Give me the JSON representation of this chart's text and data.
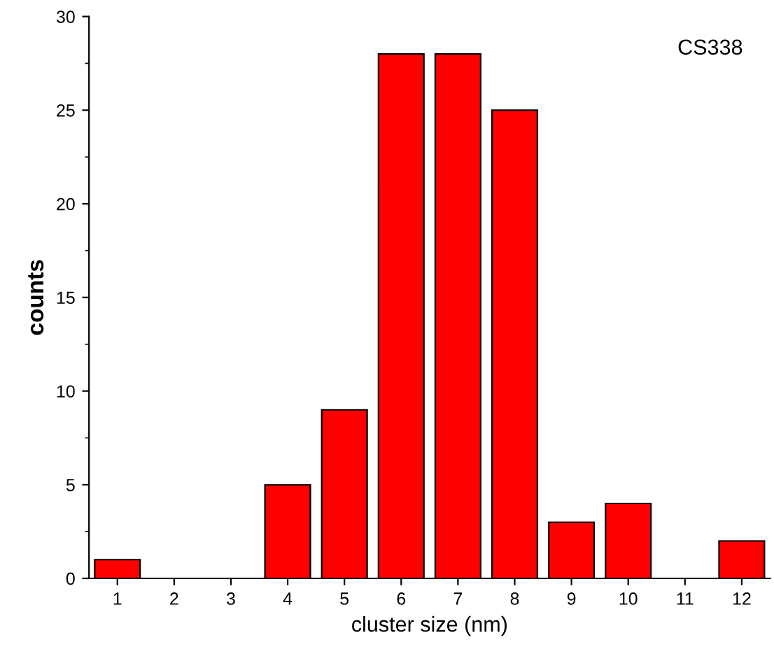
{
  "chart_data": {
    "type": "bar",
    "xlabel": "cluster size (nm)",
    "ylabel": "counts",
    "categories": [
      "1",
      "2",
      "3",
      "4",
      "5",
      "6",
      "7",
      "8",
      "9",
      "10",
      "11",
      "12"
    ],
    "values": [
      1,
      0,
      0,
      5,
      9,
      28,
      28,
      25,
      3,
      4,
      0,
      2
    ],
    "color": "#ff0000",
    "ylim": [
      0,
      30
    ],
    "yticks": [
      0,
      5,
      10,
      15,
      20,
      25,
      30
    ],
    "annotations": [
      "CS338"
    ],
    "grid": false
  }
}
